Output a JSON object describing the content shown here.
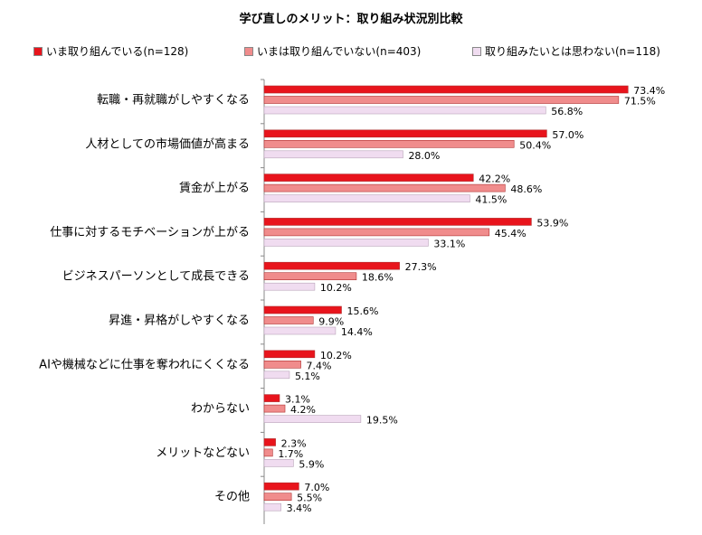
{
  "chart_data": {
    "type": "bar",
    "orientation": "horizontal",
    "title": "学び直しのメリット：取り組み状況別比較",
    "categories": [
      "転職・再就職がしやすくなる",
      "人材としての市場価値が高まる",
      "賃金が上がる",
      "仕事に対するモチベーションが上がる",
      "ビジネスパーソンとして成長できる",
      "昇進・昇格がしやすくなる",
      "AIや機械などに仕事を奪われにくくなる",
      "わからない",
      "メリットなどない",
      "その他"
    ],
    "series": [
      {
        "name": "いま取り組んでいる(n=128)",
        "color": "#e8141c",
        "values": [
          73.4,
          57.0,
          42.2,
          53.9,
          27.3,
          15.6,
          10.2,
          3.1,
          2.3,
          7.0
        ],
        "labels": [
          "73.4%",
          "57.0%",
          "42.2%",
          "53.9%",
          "27.3%",
          "15.6%",
          "10.2%",
          "3.1%",
          "2.3%",
          "7.0%"
        ]
      },
      {
        "name": "いまは取り組んでいない(n=403)",
        "color": "#f08c8c",
        "values": [
          71.5,
          50.4,
          48.6,
          45.4,
          18.6,
          9.9,
          7.4,
          4.2,
          1.7,
          5.5
        ],
        "labels": [
          "71.5%",
          "50.4%",
          "48.6%",
          "45.4%",
          "18.6%",
          "9.9%",
          "7.4%",
          "4.2%",
          "1.7%",
          "5.5%"
        ]
      },
      {
        "name": "取り組みたいとは思わない(n=118)",
        "color": "#f0dcf0",
        "values": [
          56.8,
          28.0,
          41.5,
          33.1,
          10.2,
          14.4,
          5.1,
          19.5,
          5.9,
          3.4
        ],
        "labels": [
          "56.8%",
          "28.0%",
          "41.5%",
          "33.1%",
          "10.2%",
          "14.4%",
          "5.1%",
          "19.5%",
          "5.9%",
          "3.4%"
        ]
      }
    ],
    "xlim": [
      0,
      80
    ],
    "grid": false,
    "legend_position": "top"
  }
}
